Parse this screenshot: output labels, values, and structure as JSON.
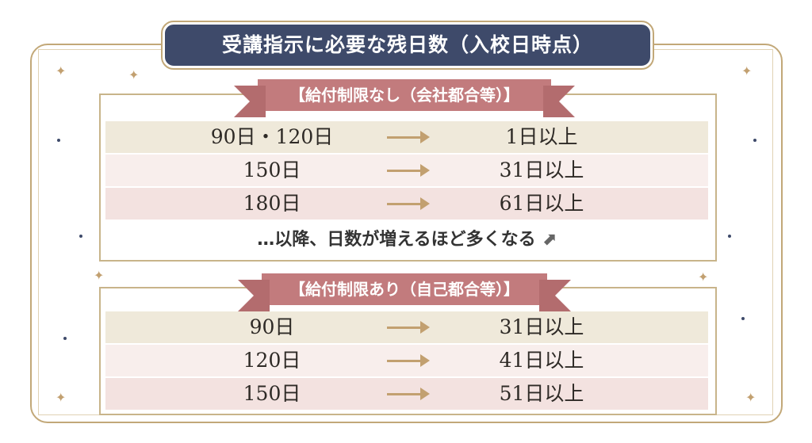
{
  "title": "受講指示に必要な残日数（入校日時点）",
  "section1": {
    "label": "【給付制限なし（会社都合等）】",
    "rows": [
      {
        "days": "90日・120日",
        "required": "1日以上"
      },
      {
        "days": "150日",
        "required": "31日以上"
      },
      {
        "days": "180日",
        "required": "61日以上"
      }
    ],
    "note": "…以降、日数が増えるほど多くなる"
  },
  "section2": {
    "label": "【給付制限あり（自己都合等）】",
    "rows": [
      {
        "days": "90日",
        "required": "31日以上"
      },
      {
        "days": "120日",
        "required": "41日以上"
      },
      {
        "days": "150日",
        "required": "51日以上"
      }
    ]
  },
  "colors": {
    "navy": "#3e4a6a",
    "gold": "#c2a878",
    "ribbon": "#c27b7d",
    "row_beige": "#efe9da",
    "row_pink_light": "#f8eeec",
    "row_pink": "#f3e2e0"
  }
}
